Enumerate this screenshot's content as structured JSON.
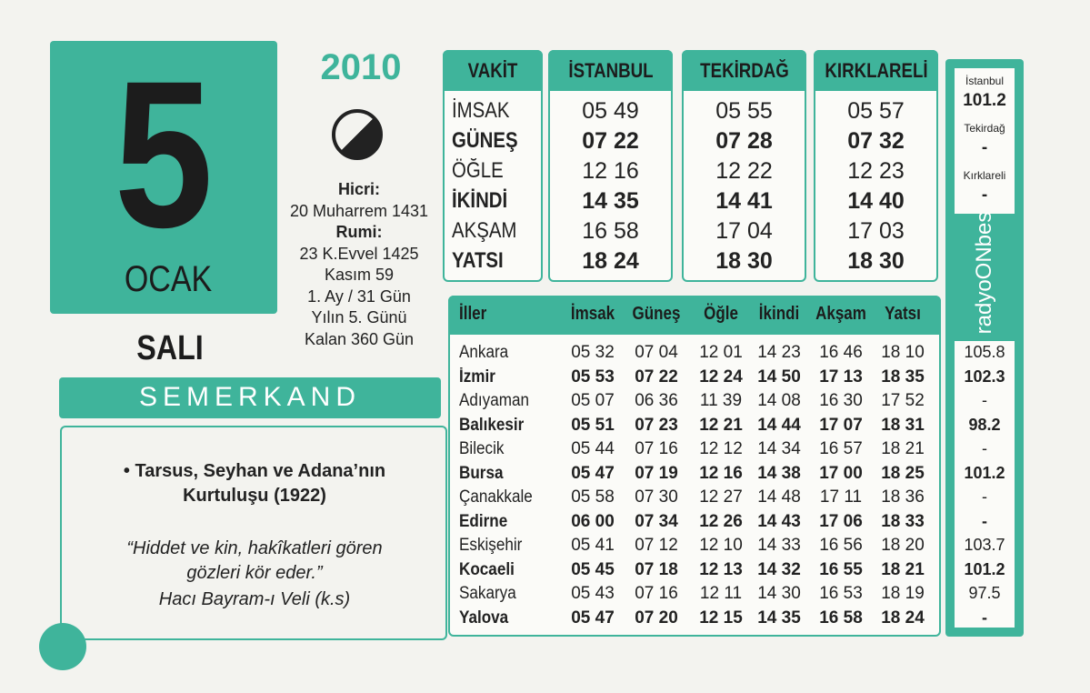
{
  "date": {
    "year": "2010",
    "day": "5",
    "month": "OCAK",
    "weekday": "SALI"
  },
  "info": [
    "Hicri:",
    "20 Muharrem 1431",
    "Rumi:",
    "23 K.Evvel 1425",
    "Kasım 59",
    "1. Ay / 31 Gün",
    "Yılın 5. Günü",
    "Kalan 360 Gün"
  ],
  "brand": "SEMERKAND",
  "event": {
    "lines": [
      "• Tarsus, Seyhan ve Adana’nın",
      "Kurtuluşu (1922)"
    ],
    "quote": [
      "“Hiddet ve kin, hakîkatleri gören",
      "gözleri kör eder.”"
    ],
    "author": "Hacı Bayram-ı Veli (k.s)"
  },
  "top_table": {
    "headers": [
      "VAKİT",
      "İSTANBUL",
      "TEKİRDAĞ",
      "KIRKLARELİ"
    ],
    "rows": [
      {
        "label": "İMSAK",
        "times": [
          "05 49",
          "05 55",
          "05 57"
        ]
      },
      {
        "label": "GÜNEŞ",
        "times": [
          "07 22",
          "07 28",
          "07 32"
        ]
      },
      {
        "label": "ÖĞLE",
        "times": [
          "12 16",
          "12 22",
          "12 23"
        ]
      },
      {
        "label": "İKİNDİ",
        "times": [
          "14 35",
          "14 41",
          "14 40"
        ]
      },
      {
        "label": "AKŞAM",
        "times": [
          "16 58",
          "17 04",
          "17 03"
        ]
      },
      {
        "label": "YATSI",
        "times": [
          "18 24",
          "18 30",
          "18 30"
        ]
      }
    ]
  },
  "radio": {
    "top": [
      {
        "city": "İstanbul",
        "freq": "101.2"
      },
      {
        "city": "Tekirdağ",
        "freq": "-"
      },
      {
        "city": "Kırklareli",
        "freq": "-"
      }
    ],
    "logo": "radyoONbes"
  },
  "cities": {
    "headers": [
      "İller",
      "İmsak",
      "Güneş",
      "Öğle",
      "İkindi",
      "Akşam",
      "Yatsı"
    ],
    "rows": [
      {
        "name": "Ankara",
        "times": [
          "05 32",
          "07 04",
          "12 01",
          "14 23",
          "16 46",
          "18 10"
        ],
        "radio": "105.8"
      },
      {
        "name": "İzmir",
        "times": [
          "05 53",
          "07 22",
          "12 24",
          "14 50",
          "17 13",
          "18 35"
        ],
        "radio": "102.3"
      },
      {
        "name": "Adıyaman",
        "times": [
          "05 07",
          "06 36",
          "11 39",
          "14 08",
          "16 30",
          "17 52"
        ],
        "radio": "-"
      },
      {
        "name": "Balıkesir",
        "times": [
          "05 51",
          "07 23",
          "12 21",
          "14 44",
          "17 07",
          "18 31"
        ],
        "radio": "98.2"
      },
      {
        "name": "Bilecik",
        "times": [
          "05 44",
          "07 16",
          "12 12",
          "14 34",
          "16 57",
          "18 21"
        ],
        "radio": "-"
      },
      {
        "name": "Bursa",
        "times": [
          "05 47",
          "07 19",
          "12 16",
          "14 38",
          "17 00",
          "18 25"
        ],
        "radio": "101.2"
      },
      {
        "name": "Çanakkale",
        "times": [
          "05 58",
          "07 30",
          "12 27",
          "14 48",
          "17 11",
          "18 36"
        ],
        "radio": "-"
      },
      {
        "name": "Edirne",
        "times": [
          "06 00",
          "07 34",
          "12 26",
          "14 43",
          "17 06",
          "18 33"
        ],
        "radio": "-"
      },
      {
        "name": "Eskişehir",
        "times": [
          "05 41",
          "07 12",
          "12 10",
          "14 33",
          "16 56",
          "18 20"
        ],
        "radio": "103.7"
      },
      {
        "name": "Kocaeli",
        "times": [
          "05 45",
          "07 18",
          "12 13",
          "14 32",
          "16 55",
          "18 21"
        ],
        "radio": "101.2"
      },
      {
        "name": "Sakarya",
        "times": [
          "05 43",
          "07 16",
          "12 11",
          "14 30",
          "16 53",
          "18 19"
        ],
        "radio": "97.5"
      },
      {
        "name": "Yalova",
        "times": [
          "05 47",
          "07 20",
          "12 15",
          "14 35",
          "16 58",
          "18 24"
        ],
        "radio": "-"
      }
    ]
  }
}
